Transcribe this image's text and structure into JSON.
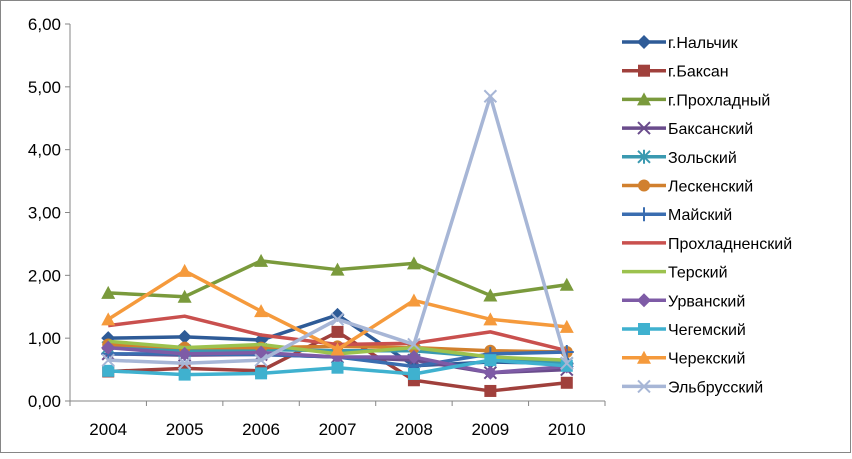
{
  "chart_data": {
    "type": "line",
    "x": [
      "2004",
      "2005",
      "2006",
      "2007",
      "2008",
      "2009",
      "2010"
    ],
    "ylim": [
      0,
      6
    ],
    "ytick_step": 1,
    "ytick_labels": [
      "0,00",
      "1,00",
      "2,00",
      "3,00",
      "4,00",
      "5,00",
      "6,00"
    ],
    "grid": false,
    "legend": "right",
    "series": [
      {
        "name": "г.Нальчик",
        "color": "#2E5B97",
        "marker": "diamond",
        "values": [
          1.0,
          1.02,
          0.97,
          1.37,
          0.56,
          0.62,
          0.6
        ]
      },
      {
        "name": "г.Баксан",
        "color": "#A0403C",
        "marker": "square",
        "values": [
          0.47,
          0.52,
          0.48,
          1.1,
          0.33,
          0.16,
          0.29
        ]
      },
      {
        "name": "г.Прохладный",
        "color": "#7A9A3C",
        "marker": "triangle",
        "values": [
          1.72,
          1.66,
          2.23,
          2.09,
          2.19,
          1.68,
          1.85
        ]
      },
      {
        "name": "Баксанский",
        "color": "#6A4C8C",
        "marker": "x",
        "values": [
          0.75,
          0.73,
          0.74,
          0.7,
          0.65,
          0.45,
          0.5
        ]
      },
      {
        "name": "Зольский",
        "color": "#3A99B0",
        "marker": "asterisk",
        "values": [
          0.85,
          0.8,
          0.82,
          0.8,
          0.8,
          0.7,
          0.6
        ]
      },
      {
        "name": "Лескенский",
        "color": "#D1802E",
        "marker": "circle",
        "values": [
          0.9,
          0.85,
          0.85,
          0.87,
          0.85,
          0.8,
          0.78
        ]
      },
      {
        "name": "Майский",
        "color": "#3A6DB0",
        "marker": "plus",
        "values": [
          0.75,
          0.75,
          0.74,
          0.7,
          0.55,
          0.75,
          0.78
        ]
      },
      {
        "name": "Прохладненский",
        "color": "#C9504E",
        "marker": "none",
        "values": [
          1.2,
          1.35,
          1.05,
          0.9,
          0.92,
          1.1,
          0.8
        ]
      },
      {
        "name": "Терский",
        "color": "#9CC24E",
        "marker": "none",
        "values": [
          0.95,
          0.85,
          0.9,
          0.75,
          0.85,
          0.7,
          0.65
        ]
      },
      {
        "name": "Урванский",
        "color": "#7E5BA6",
        "marker": "diamond",
        "values": [
          0.85,
          0.75,
          0.77,
          0.7,
          0.7,
          0.45,
          0.55
        ]
      },
      {
        "name": "Чегемский",
        "color": "#3FB1CF",
        "marker": "square",
        "values": [
          0.48,
          0.42,
          0.44,
          0.53,
          0.43,
          0.65,
          0.56
        ]
      },
      {
        "name": "Черекский",
        "color": "#F59A3C",
        "marker": "triangle",
        "values": [
          1.3,
          2.07,
          1.43,
          0.82,
          1.6,
          1.3,
          1.18
        ]
      },
      {
        "name": "Эльбрусский",
        "color": "#A7B6D6",
        "marker": "x",
        "values": [
          0.65,
          0.6,
          0.65,
          1.3,
          0.9,
          4.85,
          0.6
        ]
      }
    ]
  }
}
